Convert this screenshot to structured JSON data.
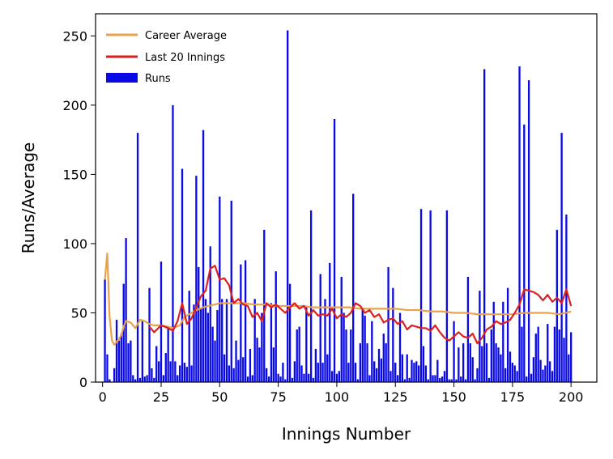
{
  "chart_data": {
    "type": "bar",
    "xlabel": "Innings Number",
    "ylabel": "Runs/Average",
    "xlim": [
      -3,
      211
    ],
    "ylim": [
      0,
      266
    ],
    "xticks": [
      0,
      25,
      50,
      75,
      100,
      125,
      150,
      175,
      200
    ],
    "yticks": [
      0,
      50,
      100,
      150,
      200,
      250
    ],
    "grid": false,
    "legend_position": "upper-left",
    "series": [
      {
        "name": "Career Average",
        "type": "line",
        "color": "#e8a24b",
        "x": [
          1,
          2,
          3,
          4,
          5,
          6,
          7,
          8,
          9,
          10,
          12,
          14,
          16,
          18,
          20,
          22,
          25,
          28,
          30,
          33,
          35,
          38,
          40,
          43,
          45,
          48,
          50,
          55,
          60,
          65,
          70,
          75,
          80,
          85,
          90,
          95,
          100,
          105,
          110,
          115,
          120,
          125,
          130,
          135,
          140,
          145,
          150,
          155,
          160,
          165,
          170,
          175,
          180,
          185,
          190,
          195,
          200
        ],
        "values": [
          74,
          93,
          47,
          30,
          27,
          29,
          31,
          34,
          40,
          44,
          43,
          39,
          45,
          44,
          42,
          41,
          41,
          40,
          39,
          41,
          47,
          50,
          52,
          54,
          55,
          56,
          57,
          57,
          57,
          56,
          56,
          55,
          55,
          55,
          54,
          54,
          54,
          54,
          53,
          53,
          53,
          53,
          52,
          52,
          51,
          51,
          50,
          50,
          49,
          49,
          49,
          49,
          50,
          50,
          50,
          49,
          51
        ]
      },
      {
        "name": "Last 20 Innings",
        "type": "line",
        "color": "#dc2020",
        "x": [
          20,
          22,
          25,
          28,
          30,
          32,
          34,
          36,
          38,
          40,
          42,
          44,
          46,
          48,
          50,
          52,
          54,
          56,
          58,
          60,
          62,
          64,
          66,
          68,
          70,
          72,
          74,
          76,
          78,
          80,
          82,
          84,
          86,
          88,
          90,
          92,
          94,
          96,
          98,
          100,
          102,
          104,
          106,
          108,
          110,
          112,
          114,
          116,
          118,
          120,
          122,
          124,
          126,
          128,
          130,
          132,
          134,
          136,
          138,
          140,
          142,
          144,
          146,
          148,
          150,
          152,
          154,
          156,
          158,
          160,
          162,
          164,
          166,
          168,
          170,
          172,
          174,
          176,
          178,
          180,
          182,
          184,
          186,
          188,
          190,
          192,
          194,
          196,
          198,
          200
        ],
        "values": [
          40,
          36,
          41,
          39,
          37,
          44,
          57,
          42,
          46,
          54,
          62,
          66,
          82,
          84,
          74,
          75,
          70,
          57,
          60,
          56,
          55,
          47,
          50,
          44,
          57,
          54,
          56,
          53,
          50,
          54,
          57,
          53,
          55,
          48,
          52,
          48,
          49,
          48,
          53,
          46,
          49,
          47,
          50,
          57,
          55,
          50,
          52,
          47,
          49,
          43,
          45,
          46,
          42,
          44,
          38,
          41,
          40,
          39,
          39,
          37,
          41,
          36,
          32,
          30,
          33,
          36,
          33,
          32,
          35,
          28,
          32,
          38,
          40,
          44,
          42,
          43,
          45,
          50,
          56,
          67,
          66,
          65,
          63,
          59,
          63,
          58,
          61,
          57,
          67,
          55
        ]
      },
      {
        "name": "Runs",
        "type": "bar",
        "color": "#0a0ae6",
        "x": [
          1,
          2,
          3,
          4,
          5,
          6,
          7,
          8,
          9,
          10,
          11,
          12,
          13,
          14,
          15,
          16,
          17,
          18,
          19,
          20,
          21,
          22,
          23,
          24,
          25,
          26,
          27,
          28,
          29,
          30,
          31,
          32,
          33,
          34,
          35,
          36,
          37,
          38,
          39,
          40,
          41,
          42,
          43,
          44,
          45,
          46,
          47,
          48,
          49,
          50,
          51,
          52,
          53,
          54,
          55,
          56,
          57,
          58,
          59,
          60,
          61,
          62,
          63,
          64,
          65,
          66,
          67,
          68,
          69,
          70,
          71,
          72,
          73,
          74,
          75,
          76,
          77,
          78,
          79,
          80,
          81,
          82,
          83,
          84,
          85,
          86,
          87,
          88,
          89,
          90,
          91,
          92,
          93,
          94,
          95,
          96,
          97,
          98,
          99,
          100,
          101,
          102,
          103,
          104,
          105,
          106,
          107,
          108,
          109,
          110,
          111,
          112,
          113,
          114,
          115,
          116,
          117,
          118,
          119,
          120,
          121,
          122,
          123,
          124,
          125,
          126,
          127,
          128,
          129,
          130,
          131,
          132,
          133,
          134,
          135,
          136,
          137,
          138,
          139,
          140,
          141,
          142,
          143,
          144,
          145,
          146,
          147,
          148,
          149,
          150,
          151,
          152,
          153,
          154,
          155,
          156,
          157,
          158,
          159,
          160,
          161,
          162,
          163,
          164,
          165,
          166,
          167,
          168,
          169,
          170,
          171,
          172,
          173,
          174,
          175,
          176,
          177,
          178,
          179,
          180,
          181,
          182,
          183,
          184,
          185,
          186,
          187,
          188,
          189,
          190,
          191,
          192,
          193,
          194,
          195,
          196,
          197,
          198,
          199,
          200
        ],
        "values": [
          74,
          20,
          2,
          0,
          10,
          45,
          30,
          35,
          71,
          104,
          28,
          30,
          5,
          2,
          180,
          3,
          45,
          4,
          5,
          68,
          10,
          3,
          26,
          15,
          87,
          5,
          21,
          40,
          15,
          200,
          15,
          5,
          12,
          154,
          14,
          11,
          66,
          12,
          56,
          149,
          83,
          53,
          182,
          60,
          50,
          98,
          40,
          30,
          52,
          134,
          60,
          20,
          60,
          12,
          131,
          10,
          30,
          16,
          85,
          18,
          88,
          4,
          24,
          5,
          60,
          32,
          25,
          50,
          110,
          10,
          4,
          57,
          25,
          80,
          6,
          4,
          14,
          2,
          254,
          71,
          3,
          15,
          38,
          40,
          12,
          6,
          54,
          6,
          124,
          3,
          24,
          14,
          78,
          14,
          60,
          20,
          86,
          8,
          190,
          6,
          8,
          76,
          50,
          38,
          14,
          38,
          136,
          14,
          2,
          28,
          53,
          48,
          28,
          5,
          44,
          15,
          10,
          24,
          17,
          35,
          28,
          83,
          8,
          68,
          14,
          5,
          50,
          20,
          2,
          20,
          3,
          16,
          14,
          15,
          12,
          125,
          26,
          12,
          2,
          124,
          5,
          5,
          16,
          3,
          4,
          8,
          124,
          2,
          2,
          44,
          2,
          25,
          4,
          28,
          2,
          76,
          28,
          18,
          2,
          10,
          66,
          26,
          226,
          28,
          3,
          38,
          58,
          28,
          25,
          20,
          58,
          10,
          68,
          22,
          14,
          12,
          8,
          228,
          40,
          186,
          4,
          218,
          6,
          18,
          35,
          40,
          16,
          9,
          12,
          42,
          15,
          8,
          40,
          110,
          38,
          180,
          32,
          121,
          20,
          36
        ]
      }
    ]
  }
}
